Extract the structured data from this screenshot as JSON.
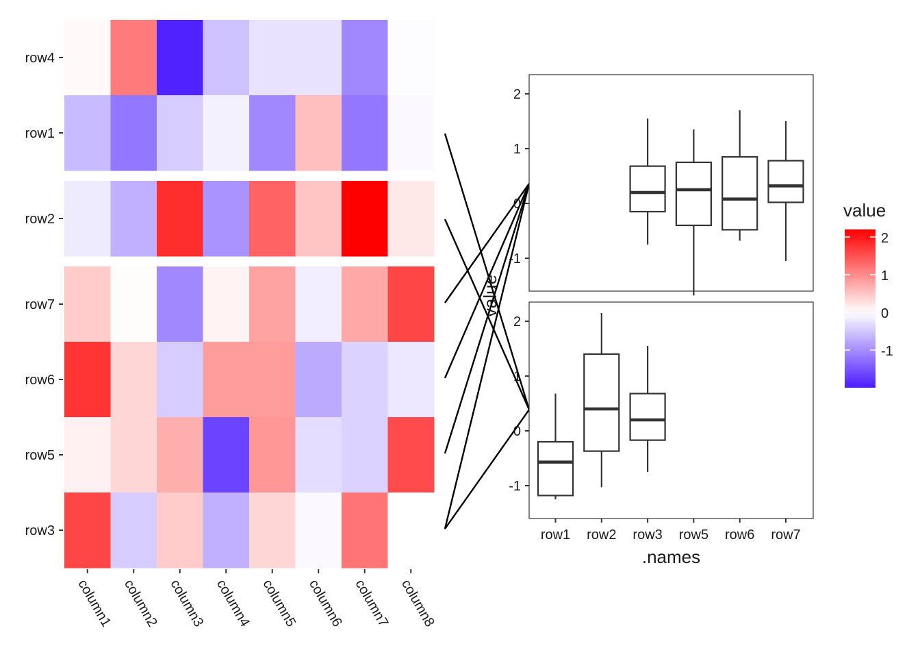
{
  "chart_data": [
    {
      "type": "heatmap",
      "rows": [
        "row4",
        "row1",
        "row2",
        "row7",
        "row6",
        "row5",
        "row3"
      ],
      "row_groups": [
        [
          "row4",
          "row1"
        ],
        [
          "row2"
        ],
        [
          "row7",
          "row6",
          "row5",
          "row3"
        ]
      ],
      "columns": [
        "column1",
        "column2",
        "column3",
        "column4",
        "column5",
        "column6",
        "column7",
        "column8"
      ],
      "values": [
        [
          0.05,
          1.15,
          -1.95,
          -0.55,
          -0.25,
          -0.25,
          -1.05,
          -0.02
        ],
        [
          -0.6,
          -1.2,
          -0.45,
          -0.12,
          -1.05,
          0.55,
          -1.2,
          -0.05
        ],
        [
          -0.18,
          -0.7,
          1.8,
          -0.95,
          1.35,
          0.5,
          2.2,
          0.2
        ],
        [
          0.45,
          0.03,
          -1.05,
          0.1,
          0.8,
          -0.15,
          0.75,
          1.6
        ],
        [
          1.75,
          0.35,
          -0.45,
          0.85,
          0.85,
          -0.75,
          -0.4,
          -0.2
        ],
        [
          0.12,
          0.35,
          0.7,
          -1.65,
          0.9,
          -0.3,
          -0.4,
          1.55
        ],
        [
          1.6,
          -0.45,
          0.45,
          -0.7,
          0.35,
          -0.05,
          1.2,
          0.0
        ]
      ],
      "color_scale": {
        "low": "#4b1cff",
        "mid": "#ffffff",
        "high": "#ff0000",
        "domain": [
          -2,
          2.2
        ]
      },
      "legend": {
        "title": "value",
        "ticks": [
          2,
          1,
          0,
          -1
        ],
        "placement": "right"
      }
    },
    {
      "type": "boxplot",
      "xlabel": ".names",
      "ylabel": "value",
      "categories": [
        "row1",
        "row2",
        "row3",
        "row5",
        "row6",
        "row7"
      ],
      "ylim": [
        -1.6,
        2.35
      ],
      "yticks": [
        2,
        1,
        0,
        -1
      ],
      "panels": [
        {
          "boxes": [
            {
              "category": "row3",
              "min": -0.75,
              "q1": -0.15,
              "median": 0.2,
              "q3": 0.68,
              "max": 1.55
            },
            {
              "category": "row5",
              "min": -1.68,
              "q1": -0.4,
              "median": 0.25,
              "q3": 0.75,
              "max": 1.35
            },
            {
              "category": "row6",
              "min": -0.68,
              "q1": -0.48,
              "median": 0.08,
              "q3": 0.85,
              "max": 1.7
            },
            {
              "category": "row7",
              "min": -1.05,
              "q1": 0.02,
              "median": 0.32,
              "q3": 0.78,
              "max": 1.5
            }
          ]
        },
        {
          "boxes": [
            {
              "category": "row1",
              "min": -1.25,
              "q1": -1.18,
              "median": -0.57,
              "q3": -0.2,
              "max": 0.68
            },
            {
              "category": "row2",
              "min": -1.03,
              "q1": -0.37,
              "median": 0.4,
              "q3": 1.4,
              "max": 2.15
            },
            {
              "category": "row3",
              "min": -0.75,
              "q1": -0.17,
              "median": 0.2,
              "q3": 0.68,
              "max": 1.55
            }
          ]
        }
      ]
    }
  ]
}
